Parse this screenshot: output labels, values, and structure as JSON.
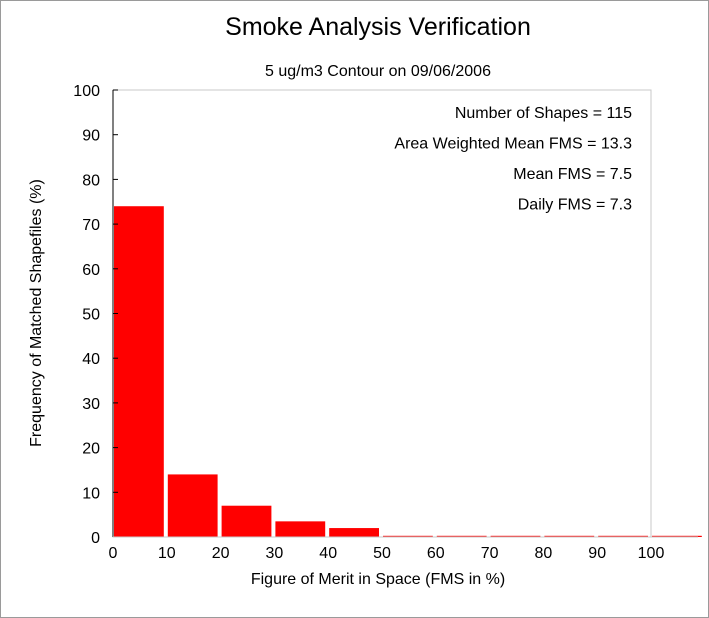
{
  "chart_data": {
    "type": "bar",
    "title": "Smoke Analysis Verification",
    "subtitle": "5 ug/m3 Contour on 09/06/2006",
    "xlabel": "Figure of Merit in Space (FMS in %)",
    "ylabel": "Frequency of Matched Shapefiles (%)",
    "xlim": [
      0,
      110
    ],
    "ylim": [
      0,
      100
    ],
    "xticks": [
      0,
      10,
      20,
      30,
      40,
      50,
      60,
      70,
      80,
      90,
      100
    ],
    "yticks": [
      0,
      10,
      20,
      30,
      40,
      50,
      60,
      70,
      80,
      90,
      100
    ],
    "bin_width": 10,
    "bins": [
      0,
      10,
      20,
      30,
      40,
      50,
      60,
      70,
      80,
      90,
      100
    ],
    "values": [
      74,
      14,
      7,
      3.5,
      2,
      0,
      0,
      0,
      0,
      0,
      0
    ],
    "bar_color": "#ff0000",
    "annotations": [
      "Number of Shapes = 115",
      "Area Weighted Mean FMS = 13.3",
      "Mean FMS = 7.5",
      "Daily FMS = 7.3"
    ],
    "legend": "none",
    "grid": false
  }
}
